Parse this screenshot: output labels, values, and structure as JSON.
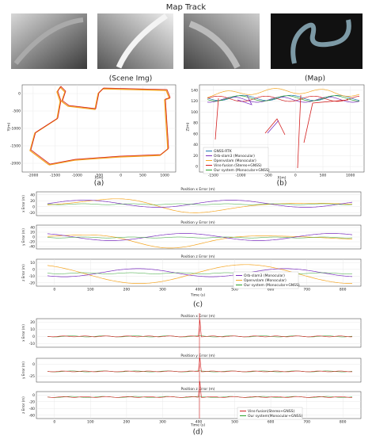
{
  "title": "Map Track",
  "images": {
    "scene_caption": "(Scene Img)",
    "map_caption": "(Map)"
  },
  "panel_a": {
    "caption": "(a)",
    "xlabel": "X(m)",
    "ylabel": "Y(m)",
    "xticks": [
      "-2000",
      "-1500",
      "-1000",
      "-500",
      "0",
      "500",
      "1000"
    ],
    "yticks": [
      "0",
      "-500",
      "-1000",
      "-1500",
      "-2000"
    ]
  },
  "panel_b": {
    "caption": "(b)",
    "xlabel": "X(m)",
    "ylabel": "Z(m)",
    "xticks": [
      "-1500",
      "-1000",
      "-500",
      "0",
      "500",
      "1000"
    ],
    "yticks": [
      "140",
      "120",
      "100",
      "80",
      "60",
      "40",
      "20",
      "0"
    ],
    "legend": [
      "GNSS-RTK",
      "Orb-slam3 (Monocular)",
      "Openvslam (Monocular)",
      "Vins-fusion (Stereo+GNSS)",
      "Our system (Monocular+GNSS)"
    ]
  },
  "panel_c": {
    "caption": "(c)",
    "xlabel": "Time (s)",
    "xticks": [
      "0",
      "100",
      "200",
      "300",
      "400",
      "500",
      "600",
      "700",
      "800"
    ],
    "subplots": [
      {
        "title": "Position x Error (m)",
        "ylabel": "x Error (m)",
        "yticks": [
          "40",
          "20",
          "0",
          "-20"
        ]
      },
      {
        "title": "Position y Error (m)",
        "ylabel": "y Error (m)",
        "yticks": [
          "40",
          "20",
          "0",
          "-20",
          "-40"
        ]
      },
      {
        "title": "Position z Error (m)",
        "ylabel": "z Error (m)",
        "yticks": [
          "10",
          "0",
          "-10",
          "-20"
        ]
      }
    ],
    "legend": [
      "Orb-slam3 (Monocular)",
      "Openvslam (Monocular)",
      "Our system (Monocular+GNSS)"
    ]
  },
  "panel_d": {
    "caption": "(d)",
    "xlabel": "Time (s)",
    "xticks": [
      "0",
      "100",
      "200",
      "300",
      "400",
      "500",
      "600",
      "700",
      "800"
    ],
    "subplots": [
      {
        "title": "Position x Error (m)",
        "ylabel": "x Error (m)",
        "yticks": [
          "20",
          "10",
          "0",
          "-10"
        ]
      },
      {
        "title": "Position y Error (m)",
        "ylabel": "y Error (m)",
        "yticks": [
          "0",
          "-25"
        ]
      },
      {
        "title": "Position z Error (m)",
        "ylabel": "z Error (m)",
        "yticks": [
          "0",
          "-20",
          "-40",
          "-60"
        ]
      }
    ],
    "legend": [
      "Vins-fusion(Stereo+GNSS)",
      "Our system(Monocular+GNSS)"
    ]
  }
}
